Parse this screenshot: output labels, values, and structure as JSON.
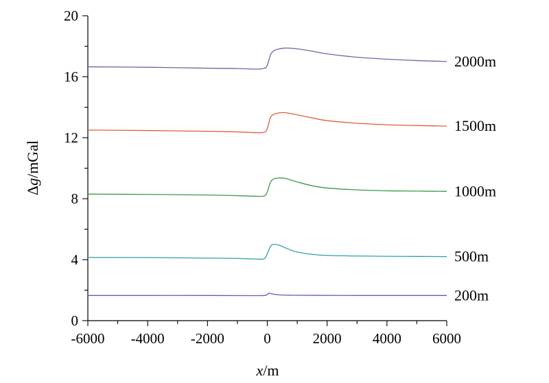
{
  "chart_data": {
    "type": "line",
    "title": "",
    "xlabel": {
      "var": "x",
      "unit": "/m"
    },
    "ylabel": {
      "prefix": "Δ",
      "var": "g",
      "unit": "/mGal"
    },
    "xlim": [
      -6000,
      6000
    ],
    "ylim": [
      0,
      20
    ],
    "xticks": [
      -6000,
      -4000,
      -2000,
      0,
      2000,
      4000,
      6000
    ],
    "xtick_labels": [
      "-6000",
      "-4000",
      "-2000",
      "0",
      "2000",
      "4000",
      "6000"
    ],
    "yticks": [
      0,
      4,
      8,
      12,
      16,
      20
    ],
    "ytick_labels": [
      "0",
      "4",
      "8",
      "12",
      "16",
      "20"
    ],
    "grid": false,
    "legend": "labels at right end of each curve",
    "series": [
      {
        "name": "2000m",
        "color": "#7b5ea7",
        "x": [
          -6000,
          -4000,
          -2000,
          -1000,
          -400,
          -100,
          0,
          100,
          200,
          400,
          600,
          800,
          1000,
          1500,
          2000,
          3000,
          4000,
          5000,
          6000
        ],
        "y": [
          16.65,
          16.62,
          16.56,
          16.54,
          16.5,
          16.55,
          16.75,
          17.4,
          17.68,
          17.83,
          17.88,
          17.87,
          17.83,
          17.68,
          17.5,
          17.28,
          17.15,
          17.06,
          17.0
        ]
      },
      {
        "name": "1500m",
        "color": "#e05c3a",
        "x": [
          -6000,
          -4000,
          -2000,
          -1000,
          -400,
          -100,
          0,
          100,
          200,
          400,
          600,
          800,
          1000,
          1500,
          2000,
          3000,
          4000,
          5000,
          6000
        ],
        "y": [
          12.5,
          12.47,
          12.42,
          12.38,
          12.33,
          12.36,
          12.6,
          13.3,
          13.52,
          13.63,
          13.64,
          13.58,
          13.5,
          13.3,
          13.12,
          12.95,
          12.85,
          12.8,
          12.76
        ]
      },
      {
        "name": "1000m",
        "color": "#3a9a45",
        "x": [
          -6000,
          -4000,
          -2000,
          -1000,
          -400,
          -100,
          0,
          100,
          200,
          400,
          600,
          800,
          1000,
          1500,
          2000,
          3000,
          4000,
          5000,
          6000
        ],
        "y": [
          8.3,
          8.28,
          8.24,
          8.2,
          8.16,
          8.18,
          8.45,
          9.05,
          9.28,
          9.36,
          9.33,
          9.22,
          9.1,
          8.85,
          8.7,
          8.58,
          8.52,
          8.5,
          8.48
        ]
      },
      {
        "name": "500m",
        "color": "#2e9fa6",
        "x": [
          -6000,
          -4000,
          -2000,
          -1000,
          -400,
          -100,
          0,
          100,
          200,
          400,
          600,
          800,
          1000,
          1500,
          2000,
          3000,
          4000,
          5000,
          6000
        ],
        "y": [
          4.15,
          4.14,
          4.1,
          4.08,
          4.04,
          4.06,
          4.4,
          4.85,
          5.0,
          4.95,
          4.78,
          4.62,
          4.5,
          4.35,
          4.28,
          4.24,
          4.22,
          4.21,
          4.2
        ]
      },
      {
        "name": "200m",
        "color": "#6a56b3",
        "x": [
          -6000,
          -4000,
          -2000,
          -500,
          -100,
          0,
          50,
          100,
          200,
          300,
          500,
          800,
          1500,
          3000,
          6000
        ],
        "y": [
          1.65,
          1.65,
          1.65,
          1.64,
          1.65,
          1.72,
          1.8,
          1.78,
          1.74,
          1.71,
          1.68,
          1.67,
          1.66,
          1.65,
          1.65
        ]
      }
    ]
  }
}
